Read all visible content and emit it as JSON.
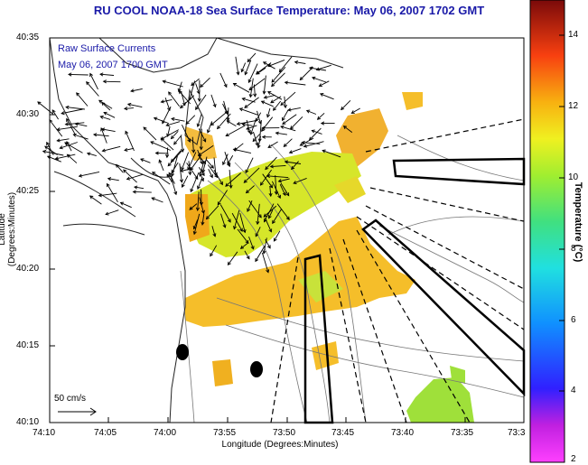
{
  "title": "RU COOL  NOAA-18  Sea Surface Temperature:  May 06, 2007 1702 GMT",
  "legend": {
    "line1": "Raw Surface Currents",
    "line2": "May 06, 2007 1700 GMT",
    "scale_label": "50 cm/s"
  },
  "axes": {
    "xlabel": "Longitude (Degrees:Minutes)",
    "ylabel": "Latitude (Degrees:Minutes)",
    "x_ticks": [
      "74:10",
      "74:05",
      "74:00",
      "73:55",
      "73:50",
      "73:45",
      "73:40",
      "73:35",
      "73:3"
    ],
    "y_ticks": [
      "40:35",
      "40:30",
      "40:25",
      "40:20",
      "40:15",
      "40:10"
    ]
  },
  "colorbar": {
    "label": "Temperature (°C)",
    "ticks": [
      "14",
      "12",
      "10",
      "8",
      "6",
      "4",
      "2"
    ],
    "range": [
      2,
      15
    ]
  },
  "colors": {
    "title": "#1a1aa8",
    "sst_warm": "#f2b21c",
    "sst_mid": "#d6e62a",
    "sst_cool": "#9fe03a"
  }
}
